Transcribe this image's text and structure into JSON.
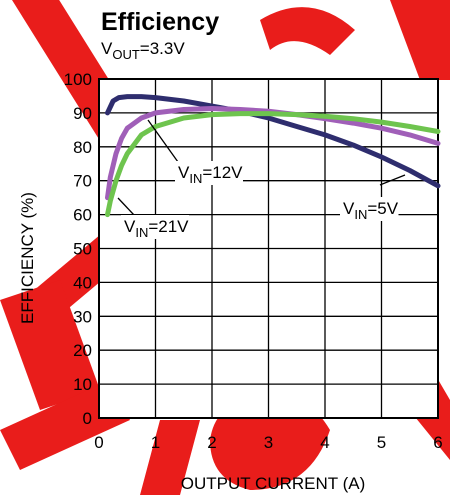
{
  "chart_data": {
    "type": "line",
    "title": "Efficiency",
    "subtitle": {
      "main": "V",
      "sub": "OUT",
      "rest": "=3.3V"
    },
    "xlabel": "OUTPUT CURRENT (A)",
    "ylabel": "EFFICIENCY (%)",
    "xlim": [
      0,
      6
    ],
    "ylim": [
      0,
      100
    ],
    "x_ticks": [
      "0",
      "1",
      "2",
      "3",
      "4",
      "5",
      "6"
    ],
    "y_ticks": [
      "0",
      "10",
      "20",
      "30",
      "40",
      "50",
      "60",
      "70",
      "80",
      "90",
      "100"
    ],
    "grid": true,
    "series": [
      {
        "name": "V_IN=5V",
        "label": {
          "main": "V",
          "sub": "IN",
          "rest": "=5V"
        },
        "color": "#2e2d6e",
        "x": [
          0.15,
          0.25,
          0.35,
          0.5,
          0.75,
          1.0,
          1.5,
          2.0,
          2.5,
          3.0,
          3.5,
          4.0,
          4.5,
          5.0,
          5.5,
          6.0
        ],
        "y": [
          90,
          93.5,
          94.5,
          94.8,
          94.8,
          94.5,
          93.5,
          92,
          90.5,
          88.5,
          86,
          83.5,
          80.5,
          77,
          73,
          68.5
        ]
      },
      {
        "name": "V_IN=12V",
        "label": {
          "main": "V",
          "sub": "IN",
          "rest": "=12V"
        },
        "color": "#a05fb8",
        "x": [
          0.15,
          0.2,
          0.3,
          0.4,
          0.5,
          0.75,
          1.0,
          1.5,
          2.0,
          2.5,
          3.0,
          3.5,
          4.0,
          4.5,
          5.0,
          5.5,
          6.0
        ],
        "y": [
          65,
          71,
          78,
          82.5,
          85.5,
          88.5,
          90,
          91,
          91.3,
          91,
          90.5,
          89.5,
          88.3,
          87,
          85.5,
          83.5,
          81
        ]
      },
      {
        "name": "V_IN=21V",
        "label": {
          "main": "V",
          "sub": "IN",
          "rest": "=21V"
        },
        "color": "#6ec44e",
        "x": [
          0.15,
          0.2,
          0.3,
          0.4,
          0.5,
          0.75,
          1.0,
          1.5,
          2.0,
          2.5,
          3.0,
          3.5,
          4.0,
          4.5,
          5.0,
          5.5,
          6.0
        ],
        "y": [
          60,
          64,
          70,
          74.5,
          78,
          83.5,
          86,
          88.5,
          89.5,
          89.8,
          89.8,
          89.5,
          89,
          88.3,
          87.3,
          86,
          84.5
        ]
      }
    ]
  }
}
